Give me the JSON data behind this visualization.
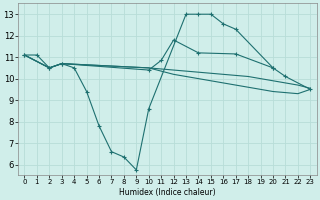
{
  "background_color": "#d0eeea",
  "grid_color": "#b8ddd8",
  "line_color": "#1e7070",
  "xlabel": "Humidex (Indice chaleur)",
  "ylim": [
    5.5,
    13.5
  ],
  "xlim": [
    -0.5,
    23.5
  ],
  "yticks": [
    6,
    7,
    8,
    9,
    10,
    11,
    12,
    13
  ],
  "xticks": [
    0,
    1,
    2,
    3,
    4,
    5,
    6,
    7,
    8,
    9,
    10,
    11,
    12,
    13,
    14,
    15,
    16,
    17,
    18,
    19,
    20,
    21,
    22,
    23
  ],
  "series": [
    {
      "x": [
        0,
        1,
        2,
        3,
        4,
        5,
        6,
        7,
        8,
        9,
        10,
        13,
        14,
        15,
        16,
        17,
        20,
        21,
        23
      ],
      "y": [
        11.1,
        11.1,
        10.5,
        10.7,
        10.5,
        9.4,
        7.8,
        6.6,
        6.35,
        5.75,
        8.6,
        13.0,
        13.0,
        13.0,
        12.55,
        12.3,
        10.5,
        10.1,
        9.5
      ],
      "marker": true
    },
    {
      "x": [
        0,
        2,
        3,
        10,
        11,
        12,
        14,
        17,
        20
      ],
      "y": [
        11.1,
        10.5,
        10.7,
        10.4,
        10.85,
        11.8,
        11.2,
        11.15,
        10.5
      ],
      "marker": true
    },
    {
      "x": [
        0,
        2,
        3,
        10,
        11,
        12,
        13,
        14,
        15,
        16,
        17,
        18,
        19,
        20,
        21,
        22,
        23
      ],
      "y": [
        11.1,
        10.5,
        10.7,
        10.5,
        10.45,
        10.4,
        10.35,
        10.3,
        10.25,
        10.2,
        10.15,
        10.1,
        10.0,
        9.9,
        9.8,
        9.7,
        9.55
      ],
      "marker": false
    },
    {
      "x": [
        0,
        2,
        3,
        10,
        11,
        12,
        13,
        14,
        15,
        16,
        17,
        18,
        19,
        20,
        21,
        22,
        23
      ],
      "y": [
        11.1,
        10.5,
        10.7,
        10.5,
        10.35,
        10.2,
        10.1,
        10.0,
        9.9,
        9.8,
        9.7,
        9.6,
        9.5,
        9.4,
        9.35,
        9.3,
        9.5
      ],
      "marker": false
    }
  ]
}
